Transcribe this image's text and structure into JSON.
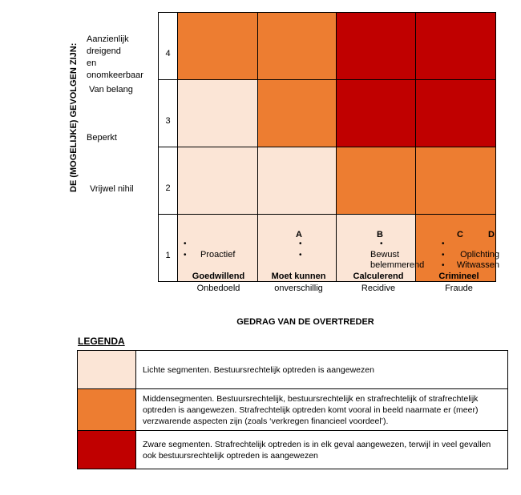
{
  "colors": {
    "light": "#FBE5D6",
    "orange": "#ED7D31",
    "red": "#C00000",
    "grid_border": "#000000"
  },
  "y_axis": {
    "title": "DE (MOGELIJKE)  GEVOLGEN ZIJN:",
    "row_labels": [
      {
        "label": "Aanzienlijk dreigend\nen\nonomkeerbaar",
        "level": "4"
      },
      {
        "label": "Van belang",
        "level": "3"
      },
      {
        "label": "Beperkt",
        "level": "2"
      },
      {
        "label": "Vrijwel nihil",
        "level": "1"
      }
    ]
  },
  "matrix": {
    "rows": [
      {
        "num": "4",
        "cells": [
          "#ED7D31",
          "#ED7D31",
          "#C00000",
          "#C00000"
        ]
      },
      {
        "num": "3",
        "cells": [
          "#FBE5D6",
          "#ED7D31",
          "#C00000",
          "#C00000"
        ]
      },
      {
        "num": "2",
        "cells": [
          "#FBE5D6",
          "#FBE5D6",
          "#ED7D31",
          "#ED7D31"
        ]
      },
      {
        "num": "1",
        "cells": [
          "#FBE5D6",
          "#FBE5D6",
          "#FBE5D6",
          "#ED7D31"
        ]
      }
    ]
  },
  "x_axis": {
    "letters": [
      "A",
      "B",
      "C",
      "D"
    ],
    "title": "GEDRAG VAN DE OVERTREDER",
    "columns": [
      {
        "name": "Goedwillend",
        "sub": "Onbedoeld",
        "bullets": [
          {
            "marker": "•",
            "text": ""
          },
          {
            "marker": "•",
            "text": "Proactief"
          }
        ]
      },
      {
        "name": "Moet kunnen",
        "sub": "onverschillig",
        "bullets": [
          {
            "marker": "•",
            "text": ""
          },
          {
            "marker": "•",
            "text": ""
          }
        ]
      },
      {
        "name": "Calculerend",
        "sub": "Recidive",
        "bullets": [
          {
            "marker": "•",
            "text": ""
          },
          {
            "marker": "",
            "text": "Bewust"
          },
          {
            "marker": "",
            "text": "belemmerend"
          }
        ]
      },
      {
        "name": "Crimineel",
        "sub": "Fraude",
        "bullets": [
          {
            "marker": "•",
            "text": ""
          },
          {
            "marker": "•",
            "text": "Oplichting"
          },
          {
            "marker": "•",
            "text": "Witwassen"
          }
        ]
      }
    ]
  },
  "legend": {
    "title": "LEGENDA",
    "items": [
      {
        "color": "#FBE5D6",
        "text": "Lichte segmenten. Bestuursrechtelijk optreden is aangewezen"
      },
      {
        "color": "#ED7D31",
        "text": "Middensegmenten. Bestuursrechtelijk, bestuursrechtelijk en strafrechtelijk of strafrechtelijk optreden is aangewezen. Strafrechtelijk optreden komt vooral in beeld naarmate er (meer) verzwarende aspecten zijn (zoals ‘verkregen financieel voordeel’)."
      },
      {
        "color": "#C00000",
        "text": "Zware segmenten. Strafrechtelijk optreden is in elk geval aangewezen, terwijl in veel gevallen ook bestuursrechtelijk optreden is aangewezen"
      }
    ]
  },
  "chart_data": {
    "type": "heatmap",
    "title": "Interventiematrix",
    "xlabel": "GEDRAG VAN DE OVERTREDER",
    "ylabel": "DE (MOGELIJKE) GEVOLGEN ZIJN:",
    "x_scale_letters": [
      "A",
      "B",
      "C",
      "D"
    ],
    "x_categories": [
      "Goedwillend / Onbedoeld",
      "Moet kunnen / onverschillig",
      "Calculerend / Recidive",
      "Crimineel / Fraude"
    ],
    "y_categories_top_to_bottom": [
      "4 - Aanzienlijk dreigend en onomkeerbaar",
      "3 - Van belang",
      "2 - Beperkt",
      "1 - Vrijwel nihil"
    ],
    "severity_matrix_top_to_bottom": [
      [
        2,
        2,
        3,
        3
      ],
      [
        1,
        2,
        3,
        3
      ],
      [
        1,
        1,
        2,
        2
      ],
      [
        1,
        1,
        1,
        2
      ]
    ],
    "severity_levels": {
      "1": "Licht segment (#FBE5D6)",
      "2": "Middensegment (#ED7D31)",
      "3": "Zwaar segment (#C00000)"
    },
    "grid": true,
    "legend_position": "bottom"
  }
}
